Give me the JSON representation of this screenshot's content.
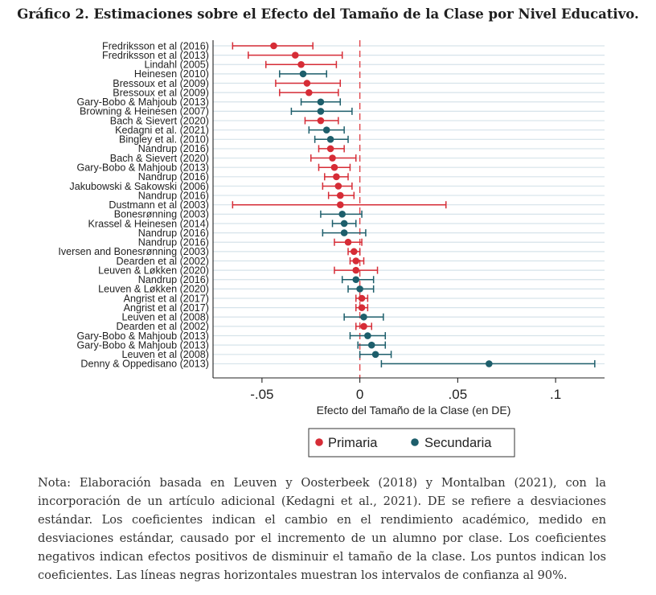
{
  "title": "Gráfico 2. Estimaciones sobre el Efecto del Tamaño de la Clase por Nivel Educativo.",
  "note": "Nota: Elaboración basada en Leuven y Oosterbeek (2018) y Montalban (2021), con la incorporación de un artículo adicional (Kedagni et al., 2021). DE se refiere a desviaciones estándar. Los coeficientes indican el cambio en el rendimiento académico, medido en desviaciones estándar, causado por el incremento de un alumno por clase. Los coeficientes negativos indican efectos positivos de disminuir el tamaño de la clase. Los puntos indican los coeficientes. Las líneas negras horizontales muestran los intervalos de confianza al 90%.",
  "colors": {
    "primaria": "#d62c36",
    "secundaria": "#1d5e6b",
    "grid": "#d6e3ea",
    "zero_line": "#e0464c"
  },
  "chart_data": {
    "type": "scatter",
    "subtype": "forest-plot",
    "xlabel": "Efecto del Tamaño de la Clase (en DE)",
    "xlim": [
      -0.075,
      0.125
    ],
    "xticks": [
      -0.05,
      0,
      0.05,
      0.1
    ],
    "xtick_labels": [
      "-.05",
      "0",
      ".05",
      ".1"
    ],
    "reference_line": 0,
    "legend": {
      "placement": "bottom",
      "entries": [
        "Primaria",
        "Secundaria"
      ]
    },
    "grid": true,
    "studies": [
      {
        "label": "Fredriksson et al (2016)",
        "level": "Primaria",
        "estimate": -0.044,
        "ci_low": -0.065,
        "ci_high": -0.024
      },
      {
        "label": "Fredriksson et al (2013)",
        "level": "Primaria",
        "estimate": -0.033,
        "ci_low": -0.057,
        "ci_high": -0.009
      },
      {
        "label": "Lindahl (2005)",
        "level": "Primaria",
        "estimate": -0.03,
        "ci_low": -0.048,
        "ci_high": -0.012
      },
      {
        "label": "Heinesen (2010)",
        "level": "Secundaria",
        "estimate": -0.029,
        "ci_low": -0.041,
        "ci_high": -0.017
      },
      {
        "label": "Bressoux et al (2009)",
        "level": "Primaria",
        "estimate": -0.027,
        "ci_low": -0.043,
        "ci_high": -0.01
      },
      {
        "label": "Bressoux et al (2009)",
        "level": "Primaria",
        "estimate": -0.026,
        "ci_low": -0.041,
        "ci_high": -0.011
      },
      {
        "label": "Gary-Bobo & Mahjoub (2013)",
        "level": "Secundaria",
        "estimate": -0.02,
        "ci_low": -0.03,
        "ci_high": -0.01
      },
      {
        "label": "Browning & Heinesen (2007)",
        "level": "Secundaria",
        "estimate": -0.02,
        "ci_low": -0.035,
        "ci_high": -0.004
      },
      {
        "label": "Bach & Sievert (2020)",
        "level": "Primaria",
        "estimate": -0.02,
        "ci_low": -0.028,
        "ci_high": -0.011
      },
      {
        "label": "Kedagni et al. (2021)",
        "level": "Secundaria",
        "estimate": -0.017,
        "ci_low": -0.026,
        "ci_high": -0.008
      },
      {
        "label": "Bingley et al. (2010)",
        "level": "Secundaria",
        "estimate": -0.015,
        "ci_low": -0.023,
        "ci_high": -0.006
      },
      {
        "label": "Nandrup (2016)",
        "level": "Primaria",
        "estimate": -0.015,
        "ci_low": -0.021,
        "ci_high": -0.008
      },
      {
        "label": "Bach & Sievert (2020)",
        "level": "Primaria",
        "estimate": -0.014,
        "ci_low": -0.025,
        "ci_high": -0.002
      },
      {
        "label": "Gary-Bobo & Mahjoub (2013)",
        "level": "Primaria",
        "estimate": -0.013,
        "ci_low": -0.021,
        "ci_high": -0.005
      },
      {
        "label": "Nandrup (2016)",
        "level": "Primaria",
        "estimate": -0.012,
        "ci_low": -0.018,
        "ci_high": -0.006
      },
      {
        "label": "Jakubowski & Sakowski (2006)",
        "level": "Primaria",
        "estimate": -0.011,
        "ci_low": -0.019,
        "ci_high": -0.004
      },
      {
        "label": "Nandrup (2016)",
        "level": "Primaria",
        "estimate": -0.01,
        "ci_low": -0.016,
        "ci_high": -0.003
      },
      {
        "label": "Dustmann et al (2003)",
        "level": "Primaria",
        "estimate": -0.01,
        "ci_low": -0.065,
        "ci_high": 0.044
      },
      {
        "label": "Bonesrønning (2003)",
        "level": "Secundaria",
        "estimate": -0.009,
        "ci_low": -0.02,
        "ci_high": 0.001
      },
      {
        "label": "Krassel & Heinesen (2014)",
        "level": "Secundaria",
        "estimate": -0.008,
        "ci_low": -0.014,
        "ci_high": -0.002
      },
      {
        "label": "Nandrup (2016)",
        "level": "Secundaria",
        "estimate": -0.008,
        "ci_low": -0.019,
        "ci_high": 0.003
      },
      {
        "label": "Nandrup (2016)",
        "level": "Primaria",
        "estimate": -0.006,
        "ci_low": -0.013,
        "ci_high": 0.001
      },
      {
        "label": "Iversen and Bonesrønning (2003)",
        "level": "Primaria",
        "estimate": -0.003,
        "ci_low": -0.006,
        "ci_high": 0.0
      },
      {
        "label": "Dearden et al (2002)",
        "level": "Primaria",
        "estimate": -0.002,
        "ci_low": -0.005,
        "ci_high": 0.002
      },
      {
        "label": "Leuven & Løkken (2020)",
        "level": "Primaria",
        "estimate": -0.002,
        "ci_low": -0.013,
        "ci_high": 0.009
      },
      {
        "label": "Nandrup (2016)",
        "level": "Secundaria",
        "estimate": -0.002,
        "ci_low": -0.009,
        "ci_high": 0.007
      },
      {
        "label": "Leuven & Løkken (2020)",
        "level": "Secundaria",
        "estimate": 0.0,
        "ci_low": -0.006,
        "ci_high": 0.007
      },
      {
        "label": "Angrist et al (2017)",
        "level": "Primaria",
        "estimate": 0.001,
        "ci_low": -0.002,
        "ci_high": 0.004
      },
      {
        "label": "Angrist et al (2017)",
        "level": "Primaria",
        "estimate": 0.001,
        "ci_low": -0.002,
        "ci_high": 0.004
      },
      {
        "label": "Leuven et al (2008)",
        "level": "Secundaria",
        "estimate": 0.002,
        "ci_low": -0.008,
        "ci_high": 0.012
      },
      {
        "label": "Dearden et al (2002)",
        "level": "Primaria",
        "estimate": 0.002,
        "ci_low": -0.002,
        "ci_high": 0.006
      },
      {
        "label": "Gary-Bobo & Mahjoub (2013)",
        "level": "Secundaria",
        "estimate": 0.004,
        "ci_low": -0.005,
        "ci_high": 0.013
      },
      {
        "label": "Gary-Bobo & Mahjoub (2013)",
        "level": "Secundaria",
        "estimate": 0.006,
        "ci_low": -0.001,
        "ci_high": 0.013
      },
      {
        "label": "Leuven et al (2008)",
        "level": "Secundaria",
        "estimate": 0.008,
        "ci_low": 0.0,
        "ci_high": 0.016
      },
      {
        "label": "Denny & Oppedisano (2013)",
        "level": "Secundaria",
        "estimate": 0.066,
        "ci_low": 0.011,
        "ci_high": 0.12
      }
    ]
  }
}
